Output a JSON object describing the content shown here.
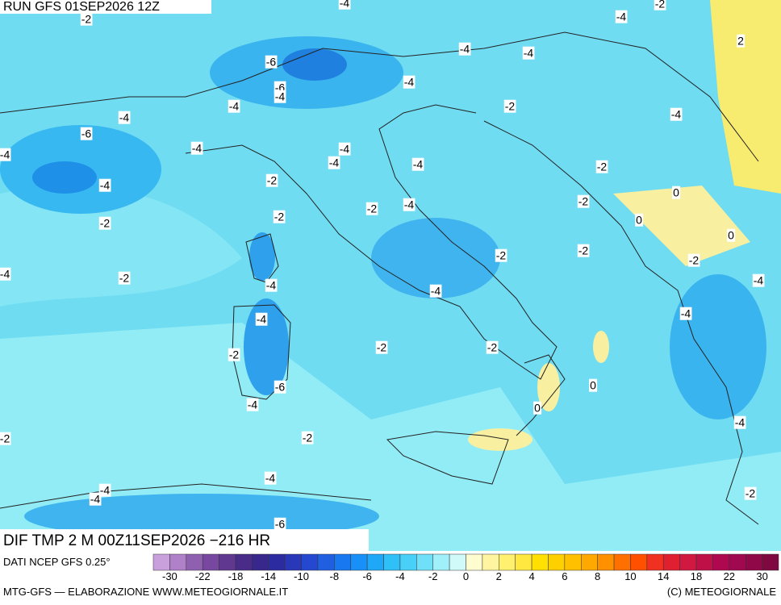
{
  "header": {
    "run": "RUN GFS 01SEP2026 12Z"
  },
  "map": {
    "title": "DIF TMP 2 M 00Z11SEP2026 −216 HR",
    "source": "DATI NCEP GFS 0.25°",
    "contour_labels": [
      "-2",
      "-4",
      "-4",
      "-2",
      "2",
      "-6",
      "-4",
      "-4",
      "-6",
      "-4",
      "-4",
      "-2",
      "-4",
      "-4",
      "-4",
      "-6",
      "-4",
      "-4",
      "-4",
      "-4",
      "-4",
      "-2",
      "-2",
      "-4",
      "0",
      "-2",
      "-4",
      "-2",
      "-2",
      "-2",
      "0",
      "0",
      "-4",
      "-2",
      "-2",
      "-2",
      "-2",
      "-4",
      "-4",
      "-4",
      "-4",
      "-4",
      "-2",
      "-2",
      "-2",
      "0",
      "-6",
      "-4",
      "0",
      "-4",
      "-2",
      "-2",
      "-4",
      "-4",
      "-4",
      "-2",
      "-6"
    ]
  },
  "colorbar": {
    "colors": [
      "#c9a0dc",
      "#b080c8",
      "#9060b0",
      "#7848a0",
      "#603890",
      "#482c88",
      "#38288c",
      "#2c2ca0",
      "#2838b8",
      "#2448d0",
      "#2060e0",
      "#1878f0",
      "#1890f8",
      "#20a8f8",
      "#30c0f8",
      "#48d0f8",
      "#70e0f8",
      "#a0f0fa",
      "#d0fafa",
      "#fffcd0",
      "#fff4a0",
      "#fff070",
      "#ffe840",
      "#ffe000",
      "#ffd000",
      "#ffc000",
      "#ffa800",
      "#ff9000",
      "#ff7000",
      "#ff5000",
      "#f03020",
      "#e02030",
      "#d01840",
      "#c01048",
      "#b00850",
      "#a00850",
      "#900848",
      "#800840"
    ],
    "ticks": [
      -30,
      -22,
      -18,
      -14,
      -10,
      -8,
      -6,
      -4,
      -2,
      0,
      2,
      4,
      6,
      8,
      10,
      14,
      18,
      22,
      30
    ]
  },
  "footer": {
    "left": "MTG-GFS — ELABORAZIONE WWW.METEOGIORNALE.IT",
    "right": "(C) METEOGIORNALE"
  }
}
